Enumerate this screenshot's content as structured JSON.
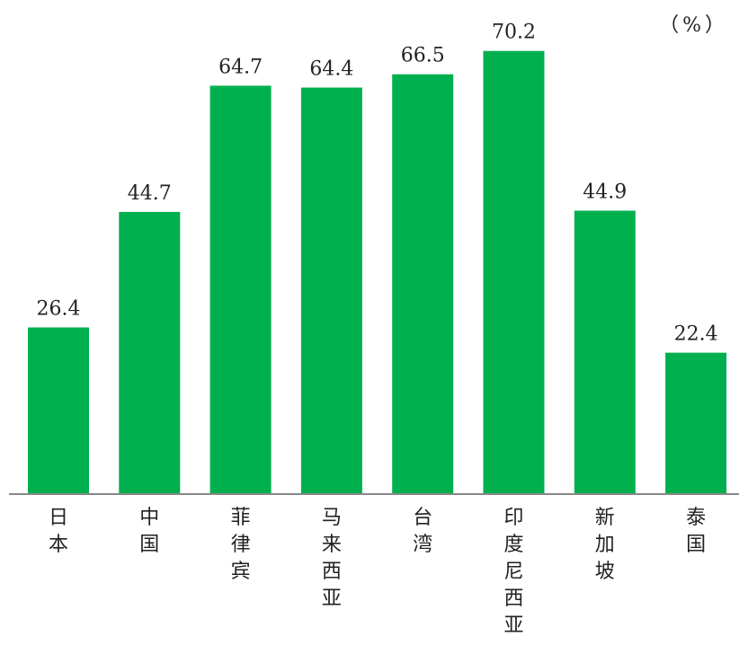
{
  "chart_data": {
    "type": "bar",
    "unit": "（%）",
    "categories": [
      "日本",
      "中国",
      "菲律宾",
      "马来西亚",
      "台湾",
      "印度尼西亚",
      "新加坡",
      "泰国"
    ],
    "values": [
      26.4,
      44.7,
      64.7,
      64.4,
      66.5,
      70.2,
      44.9,
      22.4
    ],
    "data_labels": [
      "26.4",
      "44.7",
      "64.7",
      "64.4",
      "66.5",
      "70.2",
      "44.9",
      "22.4"
    ],
    "ylim": [
      0,
      75
    ],
    "grid": false,
    "legend": "none",
    "bar_color": "#00B04F",
    "axis_color": "#888888",
    "text_color": "#222222"
  }
}
